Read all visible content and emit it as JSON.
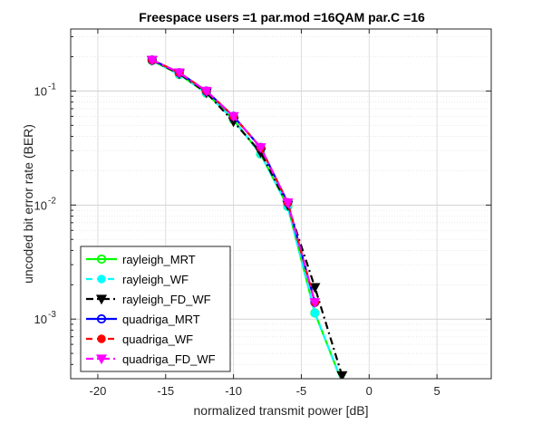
{
  "chart_data": {
    "type": "line",
    "title": "Freespace users =1 par.mod =16QAM par.C =16",
    "xlabel": "normalized transmit power [dB]",
    "ylabel": "uncoded bit error rate (BER)",
    "xlim": [
      -22,
      9
    ],
    "ylim": [
      0.0003,
      0.35
    ],
    "yscale": "log",
    "grid": true,
    "minor_grid": true,
    "x_ticks": [
      -20,
      -15,
      -10,
      -5,
      0,
      5
    ],
    "x_tick_labels": [
      "-20",
      "-15",
      "-10",
      "-5",
      "0",
      "5"
    ],
    "y_ticks": [
      0.001,
      0.01,
      0.1
    ],
    "y_tick_labels": [
      {
        "base": "10",
        "exp": "-3"
      },
      {
        "base": "10",
        "exp": "-2"
      },
      {
        "base": "10",
        "exp": "-1"
      }
    ],
    "legend_position": "bottom-left",
    "series": [
      {
        "name": "rayleigh_MRT",
        "color": "#00ff00",
        "dash": "solid",
        "marker": "circle-open",
        "x": [
          -16,
          -14,
          -12,
          -10,
          -8,
          -6,
          -4,
          -2
        ],
        "y": [
          0.185,
          0.14,
          0.096,
          0.056,
          0.028,
          0.0097,
          0.00113,
          0.00028
        ]
      },
      {
        "name": "rayleigh_WF",
        "color": "#00ffff",
        "dash": "dashed",
        "marker": "circle-filled",
        "x": [
          -16,
          -14,
          -12,
          -10,
          -8,
          -6,
          -4,
          -2
        ],
        "y": [
          0.185,
          0.14,
          0.096,
          0.056,
          0.028,
          0.0097,
          0.00113,
          0.00028
        ]
      },
      {
        "name": "rayleigh_FD_WF",
        "color": "#000000",
        "dash": "dashdot",
        "marker": "triangle-down-filled",
        "x": [
          -16,
          -14,
          -12,
          -10,
          -8,
          -6,
          -4,
          -2
        ],
        "y": [
          0.186,
          0.142,
          0.097,
          0.054,
          0.029,
          0.01,
          0.0019,
          0.00032
        ]
      },
      {
        "name": "quadriga_MRT",
        "color": "#0000ff",
        "dash": "solid",
        "marker": "circle-open",
        "x": [
          -16,
          -14,
          -12,
          -10,
          -8,
          -6,
          -4
        ],
        "y": [
          0.187,
          0.145,
          0.1,
          0.06,
          0.032,
          0.0105,
          0.0014
        ]
      },
      {
        "name": "quadriga_WF",
        "color": "#ff0000",
        "dash": "dashed",
        "marker": "circle-filled",
        "x": [
          -16,
          -14,
          -12,
          -10,
          -8,
          -6,
          -4
        ],
        "y": [
          0.187,
          0.145,
          0.1,
          0.06,
          0.032,
          0.0105,
          0.0014
        ]
      },
      {
        "name": "quadriga_FD_WF",
        "color": "#ff00ff",
        "dash": "dashdot",
        "marker": "triangle-down-filled",
        "x": [
          -16,
          -14,
          -12,
          -10,
          -8,
          -6,
          -4
        ],
        "y": [
          0.187,
          0.145,
          0.1,
          0.06,
          0.032,
          0.0105,
          0.0014
        ]
      }
    ]
  }
}
